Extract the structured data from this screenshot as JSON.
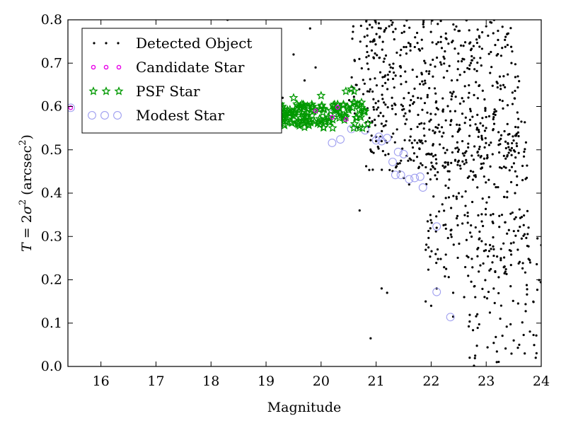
{
  "chart_data": {
    "type": "scatter",
    "xlabel": "Magnitude",
    "ylabel_parts": {
      "lhs": "T",
      "eq": " = 2",
      "sym": "σ",
      "sup": "2",
      "unit_open": " (arcsec",
      "unit_sup": "2",
      "unit_close": ")"
    },
    "xlim": [
      15.4,
      24.0
    ],
    "ylim": [
      0.0,
      0.8
    ],
    "x_ticks": [
      "16",
      "17",
      "18",
      "19",
      "20",
      "21",
      "22",
      "23",
      "24"
    ],
    "y_ticks": [
      "0.0",
      "0.1",
      "0.2",
      "0.3",
      "0.4",
      "0.5",
      "0.6",
      "0.7",
      "0.8"
    ],
    "legend_position": "top-left",
    "grid": false,
    "series": [
      {
        "name": "Detected Object",
        "marker": "dot",
        "color": "#000000",
        "seed": 7,
        "clusters": [
          {
            "n": 520,
            "x": [
              20.8,
              23.6
            ],
            "y": [
              0.45,
              0.8
            ]
          },
          {
            "n": 240,
            "x": [
              21.9,
              23.8
            ],
            "y": [
              0.2,
              0.6
            ]
          },
          {
            "n": 100,
            "x": [
              22.6,
              24.0
            ],
            "y": [
              0.0,
              0.35
            ]
          },
          {
            "n": 50,
            "x": [
              20.5,
              21.2
            ],
            "y": [
              0.55,
              0.8
            ]
          }
        ],
        "points": [
          [
            18.3,
            0.8
          ],
          [
            19.9,
            0.69
          ],
          [
            19.7,
            0.66
          ],
          [
            19.5,
            0.72
          ],
          [
            19.8,
            0.78
          ],
          [
            19.0,
            0.63
          ],
          [
            19.1,
            0.67
          ],
          [
            19.3,
            0.62
          ],
          [
            18.9,
            0.6
          ],
          [
            18.0,
            0.61
          ],
          [
            20.7,
            0.36
          ],
          [
            21.1,
            0.18
          ],
          [
            21.2,
            0.17
          ],
          [
            20.9,
            0.065
          ],
          [
            21.9,
            0.15
          ],
          [
            22.0,
            0.14
          ],
          [
            22.4,
            0.17
          ],
          [
            22.6,
            0.16
          ],
          [
            22.8,
            0.025
          ],
          [
            23.8,
            0.24
          ],
          [
            24.0,
            0.28
          ],
          [
            23.7,
            0.03
          ],
          [
            23.9,
            0.02
          ],
          [
            23.6,
            0.05
          ],
          [
            23.5,
            0.06
          ],
          [
            21.5,
            0.435
          ],
          [
            21.6,
            0.42
          ],
          [
            21.0,
            0.53
          ],
          [
            21.1,
            0.52
          ],
          [
            22.1,
            0.32
          ],
          [
            22.1,
            0.18
          ],
          [
            22.4,
            0.115
          ]
        ]
      },
      {
        "name": "Candidate Star",
        "marker": "circle-small",
        "color": "#e800e8",
        "points": [
          [
            15.45,
            0.597
          ],
          [
            20.3,
            0.598
          ],
          [
            20.45,
            0.57
          ],
          [
            19.9,
            0.59
          ],
          [
            20.2,
            0.575
          ]
        ]
      },
      {
        "name": "PSF Star",
        "marker": "star",
        "color": "#009900",
        "seed": 3,
        "clusters": [
          {
            "n": 130,
            "x": [
              19.0,
              20.8
            ],
            "y": [
              0.55,
              0.61
            ]
          },
          {
            "n": 30,
            "x": [
              18.8,
              20.0
            ],
            "y": [
              0.56,
              0.6
            ]
          }
        ],
        "points": [
          [
            20.0,
            0.625
          ],
          [
            20.45,
            0.635
          ],
          [
            20.6,
            0.635
          ],
          [
            20.55,
            0.64
          ],
          [
            20.3,
            0.605
          ],
          [
            20.7,
            0.58
          ],
          [
            19.2,
            0.61
          ],
          [
            19.5,
            0.62
          ],
          [
            19.65,
            0.605
          ],
          [
            19.1,
            0.59
          ],
          [
            19.3,
            0.6
          ],
          [
            20.85,
            0.56
          ],
          [
            20.75,
            0.55
          ]
        ]
      },
      {
        "name": "Modest Star",
        "marker": "circle-open",
        "color": "#a0a0f0",
        "points": [
          [
            15.45,
            0.597
          ],
          [
            20.2,
            0.516
          ],
          [
            20.35,
            0.524
          ],
          [
            20.8,
            0.545
          ],
          [
            21.05,
            0.53
          ],
          [
            21.0,
            0.522
          ],
          [
            21.1,
            0.52
          ],
          [
            21.2,
            0.527
          ],
          [
            21.3,
            0.472
          ],
          [
            21.35,
            0.442
          ],
          [
            21.45,
            0.442
          ],
          [
            21.4,
            0.495
          ],
          [
            21.5,
            0.49
          ],
          [
            21.7,
            0.435
          ],
          [
            21.8,
            0.438
          ],
          [
            21.85,
            0.413
          ],
          [
            21.6,
            0.432
          ],
          [
            22.1,
            0.323
          ],
          [
            22.1,
            0.172
          ],
          [
            22.35,
            0.114
          ],
          [
            20.2,
            0.583
          ],
          [
            20.55,
            0.548
          ]
        ]
      }
    ]
  }
}
